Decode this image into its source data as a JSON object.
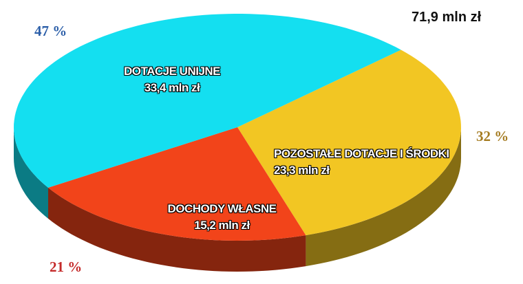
{
  "chart_data": {
    "type": "pie",
    "categories": [
      "DOTACJE UNIJNE",
      "POZOSTAŁE DOTACJE I ŚRODKI",
      "DOCHODY WŁASNE"
    ],
    "values": [
      47,
      32,
      21
    ],
    "value_labels": [
      "47 %",
      "32 %",
      "21 %"
    ],
    "amounts": [
      "33,4 mln zł",
      "23,3 mln zł",
      "15,2 mln zł"
    ],
    "colors": [
      "#14dff0",
      "#f2c623",
      "#f2441a"
    ],
    "label_colors": [
      "#2b5ea8",
      "#a57c22",
      "#c42a2a"
    ],
    "annotation": "71,9 mln zł"
  }
}
